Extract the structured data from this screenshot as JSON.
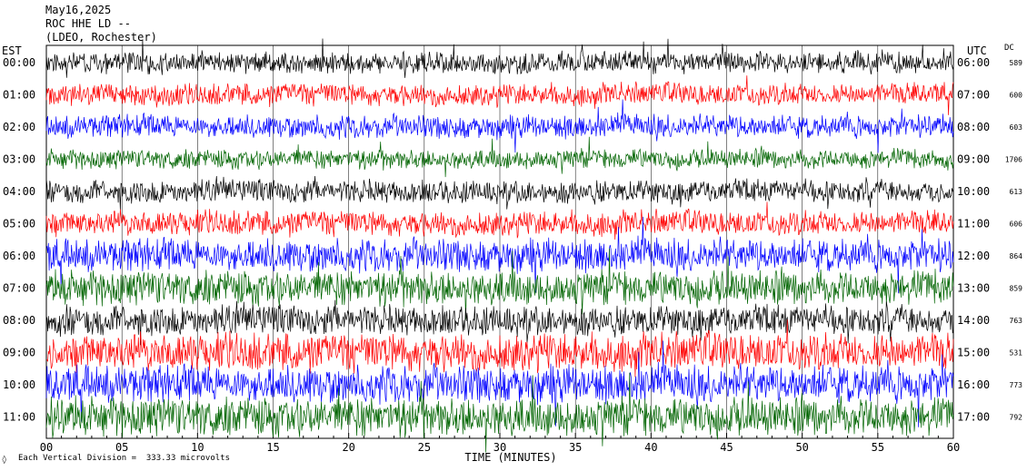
{
  "header": {
    "date": "May16,2025",
    "station": "ROC HHE LD --",
    "network": "(LDEO, Rochester)"
  },
  "left_axis_label": "EST",
  "right_axis_label": "UTC",
  "dc_label": "DC",
  "footer": {
    "scale_note": "Each Vertical Division =  333.33 microvolts",
    "corner_mark": "◊"
  },
  "chart_data": {
    "type": "line",
    "title": "May16,2025 ROC HHE LD -- (LDEO, Rochester)",
    "xlabel": "TIME (MINUTES)",
    "ylabel": "",
    "xlim": [
      0,
      60
    ],
    "x_ticks": [
      "00",
      "05",
      "10",
      "15",
      "20",
      "25",
      "30",
      "35",
      "40",
      "45",
      "50",
      "55",
      "60"
    ],
    "grid": true,
    "trace_colors": [
      "#000000",
      "#ff0000",
      "#0000ff",
      "#006400"
    ],
    "rows": [
      {
        "est": "00:00",
        "utc": "06:00",
        "dc": "589",
        "color": "#000000",
        "noise": 0.35
      },
      {
        "est": "01:00",
        "utc": "07:00",
        "dc": "600",
        "color": "#ff0000",
        "noise": 0.35
      },
      {
        "est": "02:00",
        "utc": "08:00",
        "dc": "603",
        "color": "#0000ff",
        "noise": 0.4
      },
      {
        "est": "03:00",
        "utc": "09:00",
        "dc": "1706",
        "color": "#006400",
        "noise": 0.3
      },
      {
        "est": "04:00",
        "utc": "10:00",
        "dc": "613",
        "color": "#000000",
        "noise": 0.4
      },
      {
        "est": "05:00",
        "utc": "11:00",
        "dc": "606",
        "color": "#ff0000",
        "noise": 0.45
      },
      {
        "est": "06:00",
        "utc": "12:00",
        "dc": "864",
        "color": "#0000ff",
        "noise": 0.75
      },
      {
        "est": "07:00",
        "utc": "13:00",
        "dc": "859",
        "color": "#006400",
        "noise": 0.85
      },
      {
        "est": "08:00",
        "utc": "14:00",
        "dc": "763",
        "color": "#000000",
        "noise": 0.65
      },
      {
        "est": "09:00",
        "utc": "15:00",
        "dc": "531",
        "color": "#ff0000",
        "noise": 0.9
      },
      {
        "est": "10:00",
        "utc": "16:00",
        "dc": "773",
        "color": "#0000ff",
        "noise": 0.9
      },
      {
        "est": "11:00",
        "utc": "17:00",
        "dc": "792",
        "color": "#006400",
        "noise": 1.0
      }
    ]
  }
}
